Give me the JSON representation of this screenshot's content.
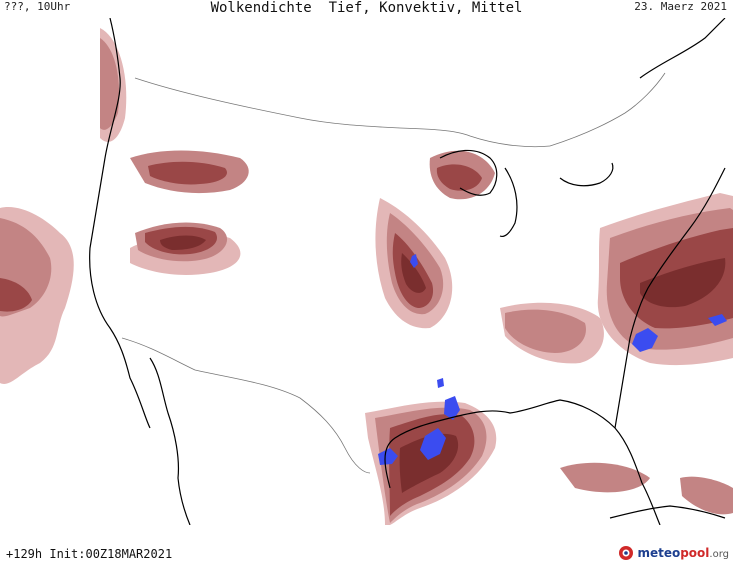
{
  "header": {
    "time_label": "???, 10Uhr",
    "title": "Wolkendichte  Tief, Konvektiv, Mittel",
    "date": "23. Maerz 2021"
  },
  "footer": {
    "run_info": "+129h Init:00Z18MAR2021",
    "logo_part1": "meteo",
    "logo_part2": "pool",
    "logo_part3": ".org"
  },
  "legend_colors": {
    "cloud_light": "#e3b7b7",
    "cloud_medium": "#c38484",
    "cloud_dense": "#9a4747",
    "cloud_very_dense": "#7a2e2e",
    "convective": "#3b4cf0",
    "coastline": "#000000",
    "borders": "#777777"
  }
}
